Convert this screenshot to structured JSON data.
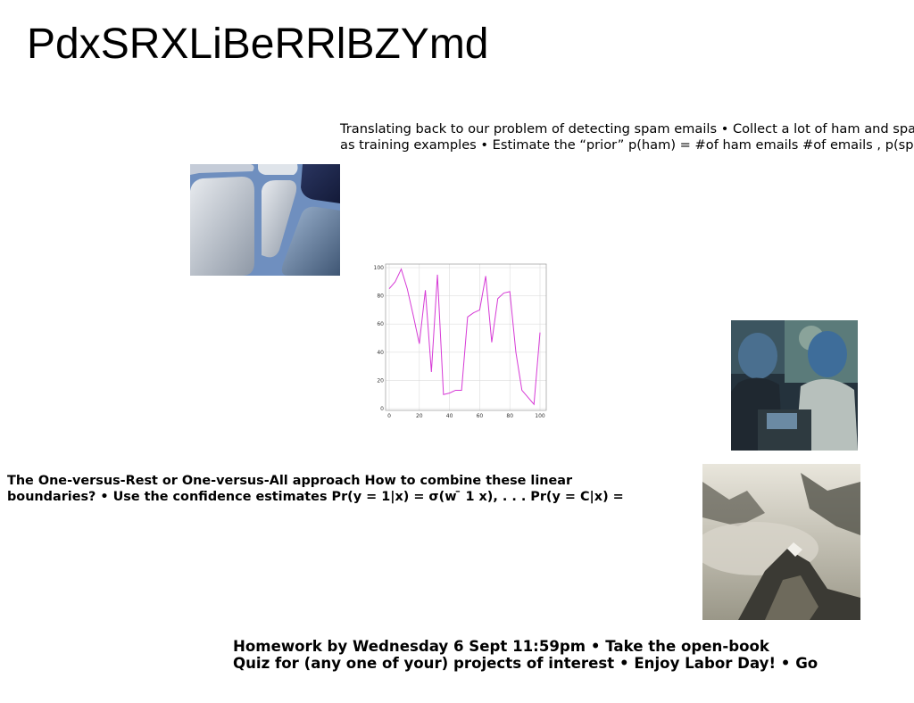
{
  "slide": {
    "title": "PdxSRXLiBeRRlBZYmd",
    "top_paragraph": {
      "line1": "Translating back to our problem of detecting spam emails • Collect a lot of ham and spam",
      "line2": "as training examples • Estimate the “prior” p(ham) = #of ham emails #of emails , p(spam)"
    },
    "middle_paragraph": {
      "line1": "The One-versus-Rest or One-versus-All approach How to combine these linear",
      "line2": "boundaries? • Use the confidence estimates Pr(y = 1|x) = σ(w ̄ 1 x), . . . Pr(y = C|x) ="
    },
    "bottom_paragraph": {
      "line1": "Homework by Wednesday 6 Sept 11:59pm • Take the open-book",
      "line2": "Quiz for (any one of your) projects of interest • Enjoy Labor Day! • Go"
    }
  },
  "images": {
    "tiles": "abstract-blue-tiles-image",
    "people": "people-at-computers-image",
    "mountain": "misty-mountain-image"
  },
  "chart_data": {
    "type": "line",
    "x": [
      0,
      4,
      8,
      12,
      16,
      20,
      24,
      28,
      32,
      36,
      40,
      44,
      48,
      52,
      56,
      60,
      64,
      68,
      72,
      76,
      80,
      84,
      88,
      92,
      96,
      100
    ],
    "series": [
      {
        "values": [
          85,
          90,
          99,
          85,
          66,
          46,
          84,
          26,
          95,
          10,
          11,
          13,
          13,
          65,
          68,
          70,
          94,
          47,
          78,
          82,
          83,
          40,
          13,
          8,
          3,
          54
        ],
        "color": "#d63ad6"
      }
    ],
    "xlim": [
      0,
      100
    ],
    "ylim": [
      0,
      100
    ],
    "xticks": [
      "0",
      "20",
      "40",
      "60",
      "80",
      "100"
    ],
    "yticks": [
      "0",
      "20",
      "40",
      "60",
      "80",
      "100"
    ],
    "grid": true
  }
}
